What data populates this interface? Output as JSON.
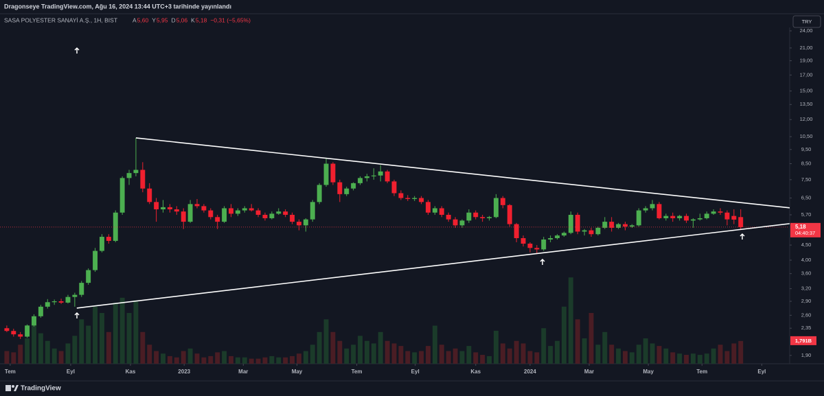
{
  "header": {
    "publisher": "Dragonseye TradingView.com, Ağu 16, 2024 13:44 UTC+3 tarihinde yayınlandı",
    "symbol": "SASA POLYESTER SANAYİ A.Ş., 1H, BIST",
    "ohlc": [
      {
        "label": "A",
        "value": "5,60"
      },
      {
        "label": "Y",
        "value": "5,95"
      },
      {
        "label": "D",
        "value": "5,06"
      },
      {
        "label": "K",
        "value": "5,18"
      }
    ],
    "change": "−0,31 (−5,65%)",
    "currency_button": "TRY"
  },
  "footer": {
    "brand": "TradingView"
  },
  "chart_data": {
    "type": "candlestick",
    "log_scale": true,
    "grid": false,
    "up_color": "#26a69a",
    "down_color": "#f23645",
    "candle_up": "#4caf50",
    "candle_down": "#f0202f",
    "volume_up_color": "#1b3b2a",
    "volume_down_color": "#4a1d24",
    "ylim": [
      1.78,
      24.65
    ],
    "yticks": [
      {
        "value": 24,
        "label": "24,00"
      },
      {
        "value": 21,
        "label": "21,00"
      },
      {
        "value": 19,
        "label": "19,00"
      },
      {
        "value": 17,
        "label": "17,00"
      },
      {
        "value": 15,
        "label": "15,00"
      },
      {
        "value": 13.5,
        "label": "13,50"
      },
      {
        "value": 12,
        "label": "12,00"
      },
      {
        "value": 10.5,
        "label": "10,50"
      },
      {
        "value": 9.5,
        "label": "9,50"
      },
      {
        "value": 8.5,
        "label": "8,50"
      },
      {
        "value": 7.5,
        "label": "7,50"
      },
      {
        "value": 6.5,
        "label": "6,50"
      },
      {
        "value": 5.7,
        "label": "5,70"
      },
      {
        "value": 4.5,
        "label": "4,50"
      },
      {
        "value": 4,
        "label": "4,00"
      },
      {
        "value": 3.6,
        "label": "3,60"
      },
      {
        "value": 3.2,
        "label": "3,20"
      },
      {
        "value": 2.9,
        "label": "2,90"
      },
      {
        "value": 2.6,
        "label": "2,60"
      },
      {
        "value": 2.35,
        "label": "2,35"
      },
      {
        "value": 1.9,
        "label": "1,90"
      }
    ],
    "xlim": [
      -1,
      115
    ],
    "xticks": [
      {
        "value": 0.5,
        "label": "Tem"
      },
      {
        "value": 9.4,
        "label": "Eyl"
      },
      {
        "value": 18.2,
        "label": "Kas"
      },
      {
        "value": 26.1,
        "label": "2023"
      },
      {
        "value": 34.8,
        "label": "Mar"
      },
      {
        "value": 42.7,
        "label": "May"
      },
      {
        "value": 51.5,
        "label": "Tem"
      },
      {
        "value": 60.1,
        "label": "Eyl"
      },
      {
        "value": 69,
        "label": "Kas"
      },
      {
        "value": 77,
        "label": "2024"
      },
      {
        "value": 85.7,
        "label": "Mar"
      },
      {
        "value": 94.4,
        "label": "May"
      },
      {
        "value": 102.3,
        "label": "Tem"
      },
      {
        "value": 111.1,
        "label": "Eyl"
      }
    ],
    "volume_lim": [
      0,
      7.3
    ],
    "open": [
      2.35,
      2.3,
      2.24,
      2.2,
      2.4,
      2.58,
      2.78,
      2.88,
      2.9,
      2.87,
      3.0,
      3.05,
      3.35,
      3.7,
      4.3,
      4.8,
      4.65,
      5.8,
      7.6,
      7.9,
      8.1,
      7.0,
      6.3,
      5.95,
      6.05,
      5.95,
      5.85,
      5.4,
      6.2,
      6.1,
      5.9,
      5.6,
      5.4,
      6.0,
      5.75,
      5.9,
      6.0,
      5.9,
      5.7,
      5.55,
      5.75,
      5.85,
      5.7,
      5.4,
      5.25,
      5.5,
      6.3,
      7.2,
      8.5,
      7.35,
      6.7,
      7.0,
      7.3,
      7.6,
      7.7,
      7.75,
      8.0,
      7.4,
      6.75,
      6.5,
      6.45,
      6.5,
      6.3,
      5.8,
      6.0,
      5.7,
      5.5,
      5.25,
      5.45,
      5.8,
      5.6,
      5.55,
      5.6,
      6.5,
      6.15,
      5.3,
      4.75,
      4.55,
      4.4,
      4.35,
      4.7,
      4.75,
      4.85,
      4.95,
      5.7,
      5.0,
      5.05,
      4.9,
      5.15,
      5.4,
      5.15,
      5.3,
      5.2,
      5.25,
      5.9,
      6.0,
      6.2,
      5.55,
      5.65,
      5.55,
      5.65,
      5.45,
      5.5,
      5.55,
      5.75,
      5.85,
      5.8,
      5.65,
      5.6
    ],
    "high": [
      2.4,
      2.34,
      2.28,
      2.42,
      2.62,
      2.82,
      2.95,
      2.94,
      2.96,
      3.05,
      3.1,
      3.4,
      3.75,
      4.4,
      4.9,
      4.9,
      5.9,
      7.7,
      8.1,
      10.4,
      8.6,
      7.3,
      6.5,
      6.4,
      6.2,
      6.1,
      6.0,
      6.4,
      6.45,
      6.2,
      6.0,
      5.7,
      6.1,
      6.2,
      6.0,
      6.1,
      6.2,
      6.0,
      5.8,
      5.85,
      6.0,
      5.95,
      5.8,
      5.5,
      5.55,
      6.4,
      7.3,
      8.9,
      8.6,
      7.5,
      7.1,
      7.35,
      7.7,
      7.85,
      8.2,
      8.4,
      8.1,
      7.5,
      6.9,
      6.65,
      6.6,
      6.6,
      6.4,
      6.1,
      6.1,
      5.8,
      5.6,
      5.5,
      5.95,
      5.9,
      5.7,
      5.65,
      6.7,
      6.6,
      6.2,
      5.35,
      4.85,
      4.6,
      4.5,
      4.8,
      4.85,
      4.9,
      5.0,
      5.85,
      5.8,
      5.1,
      5.15,
      5.2,
      5.6,
      5.6,
      5.35,
      5.4,
      5.3,
      6.0,
      6.1,
      6.4,
      6.3,
      5.75,
      5.8,
      5.7,
      5.75,
      5.55,
      5.75,
      5.85,
      5.95,
      6.0,
      5.9,
      5.95,
      5.95
    ],
    "low": [
      2.28,
      2.2,
      2.16,
      2.18,
      2.38,
      2.55,
      2.74,
      2.82,
      2.84,
      2.85,
      2.78,
      3.0,
      3.3,
      3.65,
      4.25,
      4.55,
      4.6,
      5.7,
      7.2,
      7.7,
      6.8,
      6.2,
      5.4,
      5.8,
      5.8,
      5.7,
      5.1,
      5.35,
      6.0,
      5.8,
      5.5,
      5.1,
      5.35,
      5.6,
      5.65,
      5.8,
      5.85,
      5.6,
      5.45,
      5.5,
      5.7,
      5.6,
      5.3,
      5.05,
      5.0,
      5.4,
      6.2,
      7.1,
      7.2,
      6.3,
      6.6,
      6.9,
      7.2,
      7.4,
      7.5,
      7.4,
      7.3,
      6.6,
      6.4,
      6.35,
      6.35,
      6.2,
      5.7,
      5.7,
      5.6,
      5.4,
      5.15,
      5.15,
      5.35,
      5.5,
      5.4,
      5.45,
      5.55,
      6.0,
      5.2,
      4.6,
      4.45,
      4.25,
      4.2,
      4.3,
      4.6,
      4.7,
      4.8,
      4.9,
      4.9,
      4.85,
      4.8,
      4.85,
      5.1,
      5.0,
      5.1,
      5.05,
      5.15,
      5.2,
      5.8,
      5.9,
      5.5,
      5.45,
      5.4,
      5.45,
      5.35,
      5.15,
      5.45,
      5.5,
      5.7,
      5.7,
      5.25,
      5.3,
      5.06
    ],
    "close": [
      2.3,
      2.24,
      2.2,
      2.4,
      2.58,
      2.78,
      2.88,
      2.9,
      2.87,
      3.0,
      3.05,
      3.35,
      3.7,
      4.3,
      4.8,
      4.65,
      5.8,
      7.6,
      7.9,
      8.1,
      7.0,
      6.3,
      5.95,
      6.05,
      5.95,
      5.85,
      5.4,
      6.2,
      6.1,
      5.9,
      5.6,
      5.4,
      6.0,
      5.75,
      5.9,
      6.0,
      5.9,
      5.7,
      5.55,
      5.75,
      5.85,
      5.7,
      5.4,
      5.25,
      5.5,
      6.3,
      7.2,
      8.5,
      7.35,
      6.7,
      7.0,
      7.3,
      7.6,
      7.7,
      7.75,
      8.0,
      7.4,
      6.75,
      6.5,
      6.45,
      6.5,
      6.3,
      5.8,
      6.0,
      5.7,
      5.5,
      5.25,
      5.45,
      5.8,
      5.6,
      5.55,
      5.6,
      6.5,
      6.15,
      5.3,
      4.75,
      4.55,
      4.4,
      4.35,
      4.7,
      4.75,
      4.85,
      4.95,
      5.7,
      5.0,
      5.05,
      4.9,
      5.15,
      5.4,
      5.15,
      5.3,
      5.2,
      5.25,
      5.9,
      6.0,
      6.2,
      5.55,
      5.65,
      5.55,
      5.65,
      5.45,
      5.5,
      5.55,
      5.75,
      5.85,
      5.8,
      5.5,
      5.49,
      5.18
    ],
    "volume": [
      1.0,
      0.9,
      1.5,
      2.0,
      3.0,
      2.4,
      1.8,
      1.2,
      1.0,
      1.6,
      2.2,
      3.5,
      3.0,
      4.5,
      4.0,
      2.5,
      4.8,
      5.2,
      4.0,
      5.0,
      2.5,
      1.5,
      1.0,
      0.8,
      0.6,
      0.5,
      1.0,
      1.2,
      0.8,
      0.5,
      0.6,
      0.9,
      1.0,
      0.6,
      0.5,
      0.5,
      0.4,
      0.4,
      0.5,
      0.6,
      0.5,
      0.5,
      0.6,
      0.8,
      1.0,
      1.5,
      2.5,
      3.5,
      2.5,
      1.8,
      1.2,
      1.5,
      2.2,
      1.8,
      1.6,
      2.5,
      1.8,
      1.6,
      1.4,
      1.0,
      0.9,
      1.0,
      1.4,
      3.0,
      1.5,
      1.0,
      1.2,
      1.0,
      1.4,
      0.9,
      0.7,
      0.6,
      2.6,
      1.6,
      1.2,
      1.8,
      1.6,
      1.0,
      0.9,
      2.8,
      1.4,
      1.8,
      4.5,
      6.8,
      3.5,
      2.0,
      4.0,
      1.5,
      2.5,
      1.5,
      1.2,
      1.0,
      0.9,
      1.5,
      2.0,
      1.6,
      1.4,
      1.2,
      0.9,
      0.8,
      0.7,
      0.8,
      0.7,
      0.8,
      1.2,
      1.5,
      1.0,
      1.6,
      1.791
    ],
    "trendlines": [
      {
        "x": [
          19,
          115.2
        ],
        "y": [
          10.4,
          6.02
        ]
      },
      {
        "x": [
          10.3,
          115.2
        ],
        "y": [
          2.75,
          5.32
        ]
      }
    ],
    "last_price_label": "5,18",
    "countdown": "04:40:37",
    "volume_label": "1,791B"
  }
}
